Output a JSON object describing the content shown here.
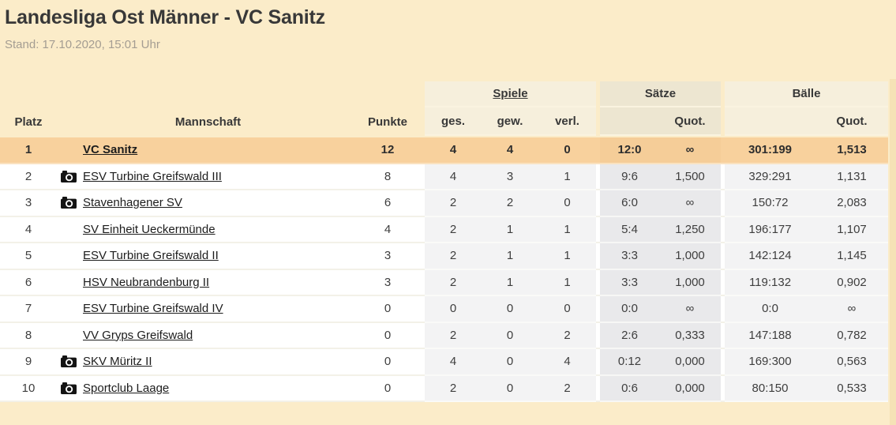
{
  "page": {
    "title": "Landesliga Ost Männer - VC Sanitz",
    "stand": "Stand: 17.10.2020, 15:01 Uhr"
  },
  "colors": {
    "page_background": "#FBECC9",
    "highlight_row": "#F8D19D",
    "group_header_light": "#F6EFDC",
    "group_header_dark": "#EDE6D1",
    "row_column_light": "#F3F3F4",
    "row_column_dark": "#E9E9EB"
  },
  "icons": {
    "camera": "camera-icon"
  },
  "table": {
    "headers": {
      "platz": "Platz",
      "mannschaft": "Mannschaft",
      "punkte": "Punkte",
      "groups": {
        "spiele": "Spiele",
        "saetze": "Sätze",
        "baelle": "Bälle"
      },
      "sub": {
        "ges": "ges.",
        "gew": "gew.",
        "verl": "verl.",
        "quot": "Quot."
      }
    },
    "rows": [
      {
        "platz": "1",
        "team": "VC Sanitz",
        "camera": false,
        "punkte": "12",
        "ges": "4",
        "gew": "4",
        "verl": "0",
        "saetze": "12:0",
        "saetze_quot": "∞",
        "baelle": "301:199",
        "baelle_quot": "1,513",
        "highlight": true
      },
      {
        "platz": "2",
        "team": "ESV Turbine Greifswald III",
        "camera": true,
        "punkte": "8",
        "ges": "4",
        "gew": "3",
        "verl": "1",
        "saetze": "9:6",
        "saetze_quot": "1,500",
        "baelle": "329:291",
        "baelle_quot": "1,131",
        "highlight": false
      },
      {
        "platz": "3",
        "team": "Stavenhagener SV",
        "camera": true,
        "punkte": "6",
        "ges": "2",
        "gew": "2",
        "verl": "0",
        "saetze": "6:0",
        "saetze_quot": "∞",
        "baelle": "150:72",
        "baelle_quot": "2,083",
        "highlight": false
      },
      {
        "platz": "4",
        "team": "SV Einheit Ueckermünde",
        "camera": false,
        "punkte": "4",
        "ges": "2",
        "gew": "1",
        "verl": "1",
        "saetze": "5:4",
        "saetze_quot": "1,250",
        "baelle": "196:177",
        "baelle_quot": "1,107",
        "highlight": false
      },
      {
        "platz": "5",
        "team": "ESV Turbine Greifswald II",
        "camera": false,
        "punkte": "3",
        "ges": "2",
        "gew": "1",
        "verl": "1",
        "saetze": "3:3",
        "saetze_quot": "1,000",
        "baelle": "142:124",
        "baelle_quot": "1,145",
        "highlight": false
      },
      {
        "platz": "6",
        "team": "HSV Neubrandenburg II",
        "camera": false,
        "punkte": "3",
        "ges": "2",
        "gew": "1",
        "verl": "1",
        "saetze": "3:3",
        "saetze_quot": "1,000",
        "baelle": "119:132",
        "baelle_quot": "0,902",
        "highlight": false
      },
      {
        "platz": "7",
        "team": "ESV Turbine Greifswald IV",
        "camera": false,
        "punkte": "0",
        "ges": "0",
        "gew": "0",
        "verl": "0",
        "saetze": "0:0",
        "saetze_quot": "∞",
        "baelle": "0:0",
        "baelle_quot": "∞",
        "highlight": false
      },
      {
        "platz": "8",
        "team": "VV Gryps Greifswald",
        "camera": false,
        "punkte": "0",
        "ges": "2",
        "gew": "0",
        "verl": "2",
        "saetze": "2:6",
        "saetze_quot": "0,333",
        "baelle": "147:188",
        "baelle_quot": "0,782",
        "highlight": false
      },
      {
        "platz": "9",
        "team": "SKV Müritz II",
        "camera": true,
        "punkte": "0",
        "ges": "4",
        "gew": "0",
        "verl": "4",
        "saetze": "0:12",
        "saetze_quot": "0,000",
        "baelle": "169:300",
        "baelle_quot": "0,563",
        "highlight": false
      },
      {
        "platz": "10",
        "team": "Sportclub Laage",
        "camera": true,
        "punkte": "0",
        "ges": "2",
        "gew": "0",
        "verl": "2",
        "saetze": "0:6",
        "saetze_quot": "0,000",
        "baelle": "80:150",
        "baelle_quot": "0,533",
        "highlight": false
      }
    ]
  }
}
